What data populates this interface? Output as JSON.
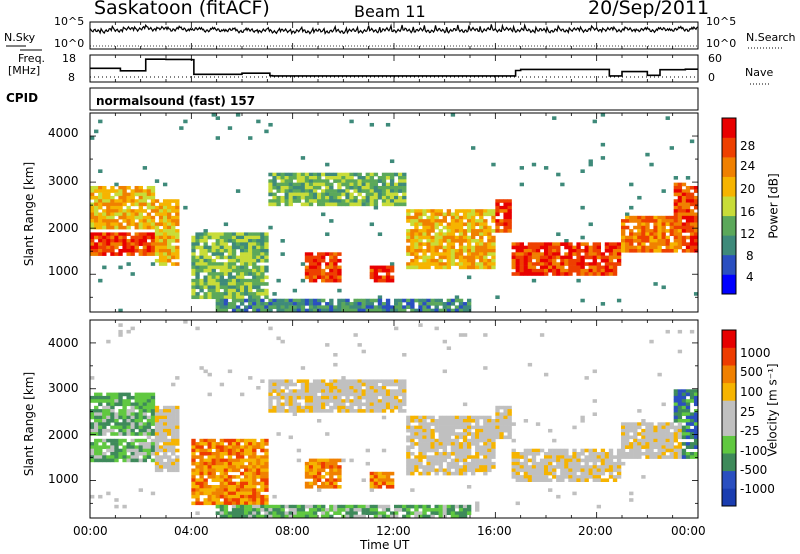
{
  "header": {
    "station": "Saskatoon (fitACF)",
    "beam": "Beam 11",
    "date": "20/Sep/2011"
  },
  "side_labels": {
    "nsky": "N.Sky",
    "freq_line1": "Freq.",
    "freq_line2": "[MHz]",
    "cpid": "CPID",
    "nsearch": "N.Search",
    "nave": "Nave"
  },
  "cpid_text": "normalsound (fast) 157",
  "colors": {
    "power_scale": [
      "#0000ff",
      "#2a4fc0",
      "#3e8a7a",
      "#5ba85a",
      "#c8dc38",
      "#f6b400",
      "#f08000",
      "#ee4000",
      "#e80000"
    ],
    "velocity_scale": [
      "#e60000",
      "#ee3c00",
      "#f08000",
      "#f6b400",
      "#c0c0c0",
      "#c0c0c0",
      "#60c840",
      "#3e8a5a",
      "#2a4fc0",
      "#1a3db0"
    ]
  },
  "chart_data": [
    {
      "type": "line",
      "name": "noise-panel",
      "left_ticks": [
        "10^5",
        "10^0"
      ],
      "right_ticks": [
        "10^5",
        "10^0"
      ],
      "ylabel_left": "N.Sky",
      "ylabel_right": "N.Search",
      "x": [
        0,
        2,
        4,
        6,
        8,
        10,
        12,
        14,
        16,
        18,
        20,
        22,
        24
      ],
      "series": [
        {
          "name": "N.Sky",
          "values": [
            3.2,
            3.8,
            3.6,
            3.4,
            3.3,
            3.3,
            3.5,
            3.4,
            3.6,
            3.4,
            3.6,
            3.5,
            3.7
          ]
        }
      ]
    },
    {
      "type": "line",
      "name": "freq-nave-panel",
      "left_ticks": [
        "18",
        "8"
      ],
      "right_ticks": [
        "60",
        "0"
      ],
      "ylabel_left": "Freq. [MHz]",
      "ylabel_right": "Nave",
      "x": [
        0,
        1.2,
        2.2,
        3.0,
        4.0,
        4.1,
        6.0,
        7.1,
        7.2,
        12.0,
        13.0,
        15.5,
        16.8,
        17.0,
        20.5,
        21.0,
        22.0,
        22.5,
        23.5,
        24
      ],
      "series": [
        {
          "name": "Freq",
          "values": [
            13.8,
            12.9,
            17.2,
            17.1,
            17.0,
            11.6,
            12.0,
            11.1,
            11.0,
            11.0,
            11.0,
            11.0,
            13.0,
            13.4,
            11.0,
            12.6,
            11.2,
            13.3,
            13.5,
            13.5
          ]
        }
      ]
    },
    {
      "type": "heatmap",
      "name": "power-panel",
      "ylabel": "Slant Range [km]",
      "xlabel": "Time UT",
      "x_ticks": [
        "00:00",
        "04:00",
        "08:00",
        "12:00",
        "16:00",
        "20:00",
        "00:00"
      ],
      "y_ticks": [
        "4000",
        "3000",
        "2000",
        "1000"
      ],
      "ylim": [
        180,
        4500
      ],
      "colorbar_label": "Power [dB]",
      "colorbar_ticks": [
        "28",
        "24",
        "20",
        "16",
        "12",
        "8",
        "4"
      ]
    },
    {
      "type": "heatmap",
      "name": "velocity-panel",
      "ylabel": "Slant Range [km]",
      "xlabel": "Time UT",
      "x_ticks": [
        "00:00",
        "04:00",
        "08:00",
        "12:00",
        "16:00",
        "20:00",
        "00:00"
      ],
      "y_ticks": [
        "4000",
        "3000",
        "2000",
        "1000"
      ],
      "ylim": [
        180,
        4500
      ],
      "colorbar_label": "Velocity [m s⁻¹]",
      "colorbar_ticks": [
        "1000",
        "500",
        "100",
        "25",
        "-25",
        "-100",
        "-500",
        "-1000"
      ]
    }
  ],
  "axis": {
    "xlabel": "Time UT",
    "x_ticks": [
      "00:00",
      "04:00",
      "08:00",
      "12:00",
      "16:00",
      "20:00",
      "00:00"
    ]
  }
}
